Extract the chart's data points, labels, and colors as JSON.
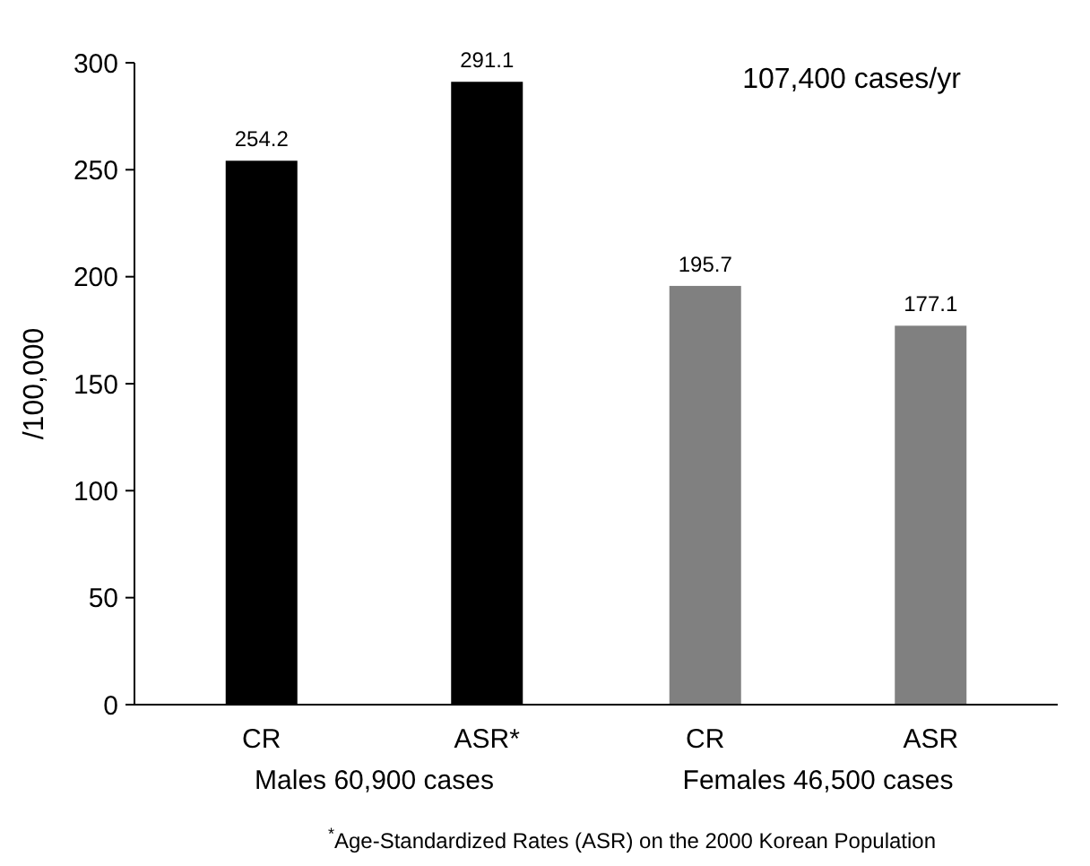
{
  "chart_data": {
    "type": "bar",
    "ylabel": "/100,000",
    "categories": [
      "CR",
      "ASR*",
      "CR",
      "ASR"
    ],
    "values": [
      254.2,
      291.1,
      195.7,
      177.1
    ],
    "colors": [
      "#000000",
      "#000000",
      "#808080",
      "#808080"
    ],
    "ylim": [
      0,
      300
    ],
    "yticks": [
      0,
      50,
      100,
      150,
      200,
      250,
      300
    ],
    "data_labels": true,
    "grid": false,
    "annotations": [
      "Males 60,900 cases",
      "Females 46,500 cases",
      "107,400 cases/yr",
      "$^{*}$Age-Standardized Rates (ASR) on the 2000 Korean Population"
    ]
  }
}
